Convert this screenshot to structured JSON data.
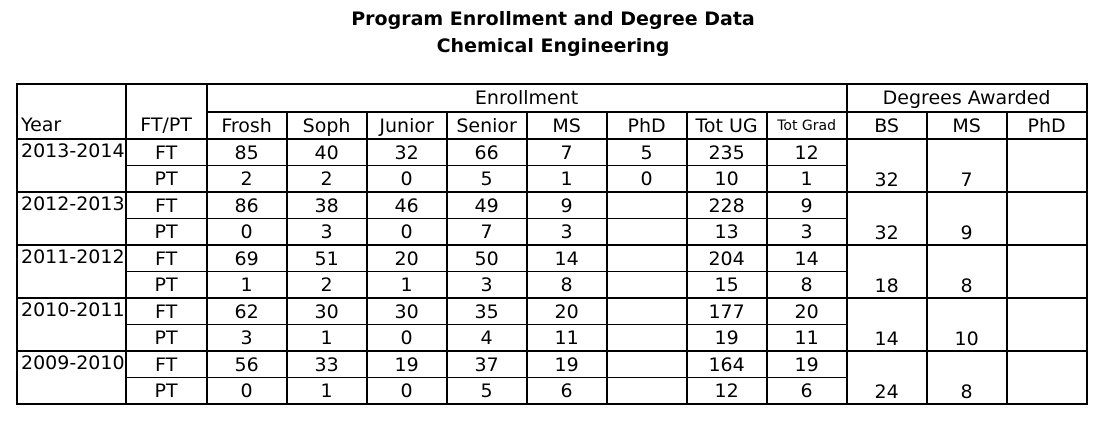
{
  "title_line1": "Program Enrollment and Degree Data",
  "title_line2": "Chemical Engineering",
  "headers": {
    "year": "Year",
    "ftpt": "FT/PT",
    "enrollment_group": "Enrollment",
    "degrees_group": "Degrees Awarded",
    "enrollment_cols": [
      "Frosh",
      "Soph",
      "Junior",
      "Senior",
      "MS",
      "PhD",
      "Tot UG",
      "Tot Grad"
    ],
    "degree_cols": [
      "BS",
      "MS",
      "PhD"
    ]
  },
  "years": [
    {
      "year": "2013-2014",
      "ft": {
        "label": "FT",
        "values": [
          "85",
          "40",
          "32",
          "66",
          "7",
          "5",
          "235",
          "12"
        ]
      },
      "pt": {
        "label": "PT",
        "values": [
          "2",
          "2",
          "0",
          "5",
          "1",
          "0",
          "10",
          "1"
        ]
      },
      "degrees": [
        "32",
        "7",
        ""
      ]
    },
    {
      "year": "2012-2013",
      "ft": {
        "label": "FT",
        "values": [
          "86",
          "38",
          "46",
          "49",
          "9",
          "",
          "228",
          "9"
        ]
      },
      "pt": {
        "label": "PT",
        "values": [
          "0",
          "3",
          "0",
          "7",
          "3",
          "",
          "13",
          "3"
        ]
      },
      "degrees": [
        "32",
        "9",
        ""
      ]
    },
    {
      "year": "2011-2012",
      "ft": {
        "label": "FT",
        "values": [
          "69",
          "51",
          "20",
          "50",
          "14",
          "",
          "204",
          "14"
        ]
      },
      "pt": {
        "label": "PT",
        "values": [
          "1",
          "2",
          "1",
          "3",
          "8",
          "",
          "15",
          "8"
        ]
      },
      "degrees": [
        "18",
        "8",
        ""
      ]
    },
    {
      "year": "2010-2011",
      "ft": {
        "label": "FT",
        "values": [
          "62",
          "30",
          "30",
          "35",
          "20",
          "",
          "177",
          "20"
        ]
      },
      "pt": {
        "label": "PT",
        "values": [
          "3",
          "1",
          "0",
          "4",
          "11",
          "",
          "19",
          "11"
        ]
      },
      "degrees": [
        "14",
        "10",
        ""
      ]
    },
    {
      "year": "2009-2010",
      "ft": {
        "label": "FT",
        "values": [
          "56",
          "33",
          "19",
          "37",
          "19",
          "",
          "164",
          "19"
        ]
      },
      "pt": {
        "label": "PT",
        "values": [
          "0",
          "1",
          "0",
          "5",
          "6",
          "",
          "12",
          "6"
        ]
      },
      "degrees": [
        "24",
        "8",
        ""
      ]
    }
  ]
}
